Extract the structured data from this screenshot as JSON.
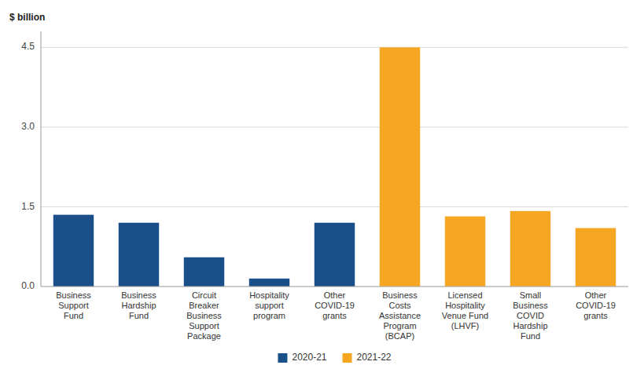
{
  "chart_data": {
    "type": "bar",
    "y_label": "$ billion",
    "categories": [
      "Business\nSupport\nFund",
      "Business\nHardship\nFund",
      "Circuit\nBreaker\nBusiness\nSupport\nPackage",
      "Hospitality\nsupport\nprogram",
      "Other\nCOVID-19\ngrants",
      "Business\nCosts\nAssistance\nProgram\n(BCAP)",
      "Licensed\nHospitality\nVenue Fund\n(LHVF)",
      "Small\nBusiness\nCOVID\nHardship\nFund",
      "Other\nCOVID-19\ngrants"
    ],
    "series": [
      {
        "name": "2020-21",
        "color": "#1a4f8a",
        "values": [
          1.35,
          1.2,
          0.55,
          0.15,
          1.2,
          null,
          null,
          null,
          null
        ]
      },
      {
        "name": "2021-22",
        "color": "#f5a623",
        "values": [
          null,
          null,
          null,
          null,
          null,
          4.5,
          1.32,
          1.42,
          1.1
        ]
      }
    ],
    "ylim": [
      0,
      4.8
    ],
    "yticks": [
      {
        "value": 0,
        "label": "0.0"
      },
      1.5,
      {
        "value": 3,
        "label": "3.0"
      },
      4.5
    ],
    "grid": true,
    "legend": "bottom"
  }
}
